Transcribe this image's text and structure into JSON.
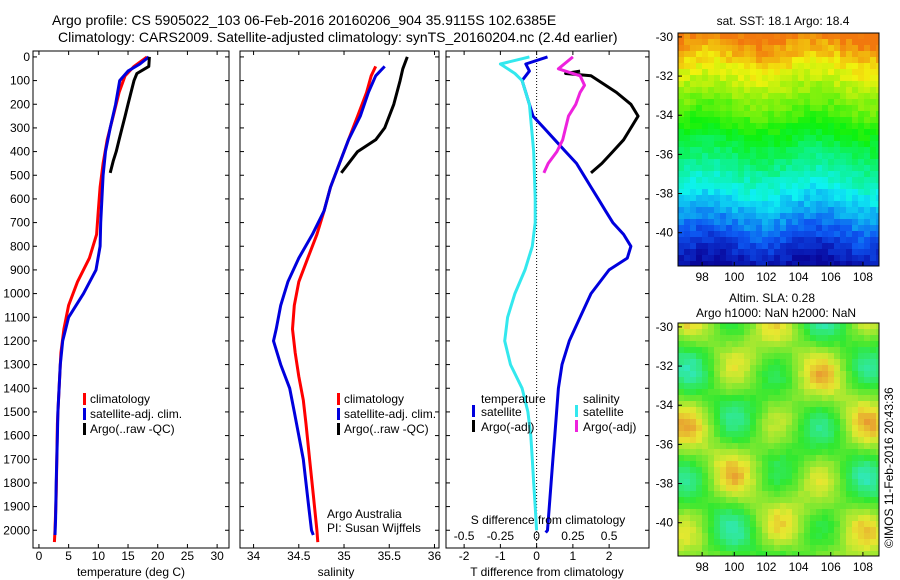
{
  "header": {
    "line1": "Argo profile: CS 5905022_103 06-Feb-2016 20160206_904 35.9115S 102.6385E",
    "line2": "Climatology: CARS2009. Satellite-adjusted climatology: synTS_20160204.nc (2.4d earlier)"
  },
  "colors": {
    "red": "#ff0000",
    "blue": "#0000dd",
    "black": "#000000",
    "cyan": "#33e8ee",
    "magenta": "#ee22dd"
  },
  "y_ticks": [
    "0",
    "100",
    "200",
    "300",
    "400",
    "500",
    "600",
    "700",
    "800",
    "900",
    "1000",
    "1100",
    "1200",
    "1300",
    "1400",
    "1500",
    "1600",
    "1700",
    "1800",
    "1900",
    "2000"
  ],
  "panels": {
    "temperature": {
      "xlabel": "temperature (deg C)",
      "xticks": [
        "0",
        "5",
        "10",
        "15",
        "20",
        "25",
        "30"
      ],
      "legend": [
        "climatology",
        "satellite-adj. clim.",
        "Argo(..raw -QC)"
      ]
    },
    "salinity": {
      "xlabel": "salinity",
      "xticks": [
        "34",
        "34.5",
        "35",
        "35.5",
        "36"
      ],
      "legend": [
        "climatology",
        "satellite-adj. clim.",
        "Argo(..raw -QC)"
      ],
      "credit1": "Argo Australia",
      "credit2": "PI: Susan Wijffels"
    },
    "difference": {
      "xlabel": "T difference from climatology",
      "xticks": [
        "-2",
        "-1",
        "0",
        "1",
        "2"
      ],
      "top_label": "S difference from climatology",
      "top_ticks": [
        "-0.5",
        "-0.25",
        "0",
        "0.25",
        "0.5"
      ],
      "legend_head_t": "temperature",
      "legend_head_s": "salinity",
      "legend_t": [
        "satellite",
        "Argo(-adj)"
      ],
      "legend_s": [
        "satellite",
        "Argo(-adj)"
      ]
    },
    "sst_map": {
      "title": "sat. SST: 18.1 Argo: 18.4",
      "xticks": [
        "98",
        "100",
        "102",
        "104",
        "106",
        "108"
      ],
      "yticks": [
        "-30",
        "-32",
        "-34",
        "-36",
        "-38",
        "-40"
      ]
    },
    "sla_map": {
      "title1": "Altim. SLA: 0.28",
      "title2": "Argo h1000: NaN h2000: NaN",
      "xticks": [
        "98",
        "100",
        "102",
        "104",
        "106",
        "108"
      ],
      "yticks": [
        "-30",
        "-32",
        "-34",
        "-36",
        "-38",
        "-40"
      ]
    }
  },
  "footer": {
    "stamp": "©IMOS 11-Feb-2016 20:43:36"
  },
  "chart_data": [
    {
      "type": "line",
      "panel": "temperature",
      "xlabel": "temperature (deg C)",
      "ylabel": "",
      "xlim": [
        -1,
        32
      ],
      "ylim": [
        2050,
        0
      ],
      "series": [
        {
          "name": "climatology",
          "color": "red",
          "points": [
            [
              18.2,
              0
            ],
            [
              16,
              40
            ],
            [
              14.5,
              80
            ],
            [
              13.5,
              150
            ],
            [
              12.5,
              250
            ],
            [
              11.5,
              350
            ],
            [
              10.8,
              450
            ],
            [
              10.3,
              550
            ],
            [
              10,
              650
            ],
            [
              9.7,
              750
            ],
            [
              8.5,
              850
            ],
            [
              6.5,
              950
            ],
            [
              5,
              1050
            ],
            [
              4.2,
              1150
            ],
            [
              3.7,
              1250
            ],
            [
              3.5,
              1350
            ],
            [
              3.3,
              1450
            ],
            [
              3.1,
              1550
            ],
            [
              3,
              1700
            ],
            [
              2.9,
              1850
            ],
            [
              2.7,
              2000
            ],
            [
              2.6,
              2050
            ]
          ]
        },
        {
          "name": "satellite-adj. clim.",
          "color": "blue",
          "points": [
            [
              18.5,
              0
            ],
            [
              17,
              30
            ],
            [
              15,
              60
            ],
            [
              13.6,
              100
            ],
            [
              12.9,
              200
            ],
            [
              12,
              300
            ],
            [
              11.2,
              400
            ],
            [
              10.8,
              500
            ],
            [
              10.6,
              600
            ],
            [
              10.4,
              700
            ],
            [
              10.3,
              800
            ],
            [
              9.6,
              900
            ],
            [
              7.5,
              1000
            ],
            [
              5,
              1100
            ],
            [
              4,
              1200
            ],
            [
              3.6,
              1300
            ],
            [
              3.4,
              1400
            ],
            [
              3.2,
              1500
            ],
            [
              3.1,
              1600
            ],
            [
              2.9,
              1800
            ],
            [
              2.8,
              1950
            ],
            [
              2.7,
              2020
            ]
          ]
        },
        {
          "name": "Argo(..raw -QC)",
          "color": "black",
          "points": [
            [
              18.6,
              0
            ],
            [
              18.5,
              40
            ],
            [
              16.5,
              70
            ],
            [
              16,
              100
            ],
            [
              15.5,
              150
            ],
            [
              15,
              200
            ],
            [
              14.5,
              250
            ],
            [
              14,
              300
            ],
            [
              13.5,
              350
            ],
            [
              13,
              400
            ],
            [
              12.5,
              440
            ],
            [
              12,
              490
            ]
          ]
        }
      ]
    },
    {
      "type": "line",
      "panel": "salinity",
      "xlabel": "salinity",
      "ylabel": "",
      "xlim": [
        33.85,
        36.05
      ],
      "ylim": [
        2050,
        0
      ],
      "series": [
        {
          "name": "climatology",
          "color": "red",
          "points": [
            [
              35.35,
              40
            ],
            [
              35.3,
              80
            ],
            [
              35.25,
              150
            ],
            [
              35.15,
              250
            ],
            [
              35.05,
              350
            ],
            [
              34.95,
              450
            ],
            [
              34.85,
              550
            ],
            [
              34.78,
              650
            ],
            [
              34.7,
              750
            ],
            [
              34.6,
              850
            ],
            [
              34.5,
              950
            ],
            [
              34.45,
              1050
            ],
            [
              34.43,
              1150
            ],
            [
              34.46,
              1250
            ],
            [
              34.5,
              1350
            ],
            [
              34.55,
              1450
            ],
            [
              34.58,
              1550
            ],
            [
              34.62,
              1700
            ],
            [
              34.66,
              1850
            ],
            [
              34.7,
              2000
            ],
            [
              34.71,
              2050
            ]
          ]
        },
        {
          "name": "satellite-adj. clim.",
          "color": "blue",
          "points": [
            [
              35.45,
              40
            ],
            [
              35.35,
              80
            ],
            [
              35.27,
              150
            ],
            [
              35.18,
              250
            ],
            [
              35.05,
              350
            ],
            [
              34.95,
              450
            ],
            [
              34.85,
              550
            ],
            [
              34.78,
              650
            ],
            [
              34.65,
              750
            ],
            [
              34.5,
              850
            ],
            [
              34.38,
              950
            ],
            [
              34.3,
              1050
            ],
            [
              34.25,
              1150
            ],
            [
              34.22,
              1200
            ],
            [
              34.3,
              1300
            ],
            [
              34.4,
              1400
            ],
            [
              34.45,
              1500
            ],
            [
              34.5,
              1600
            ],
            [
              34.55,
              1700
            ],
            [
              34.58,
              1800
            ],
            [
              34.61,
              1900
            ],
            [
              34.64,
              2000
            ],
            [
              34.66,
              2020
            ]
          ]
        },
        {
          "name": "Argo(..raw -QC)",
          "color": "black",
          "points": [
            [
              35.7,
              0
            ],
            [
              35.65,
              50
            ],
            [
              35.62,
              100
            ],
            [
              35.55,
              200
            ],
            [
              35.45,
              300
            ],
            [
              35.35,
              350
            ],
            [
              35.15,
              400
            ],
            [
              35.05,
              450
            ],
            [
              34.97,
              490
            ]
          ]
        }
      ]
    },
    {
      "type": "line",
      "panel": "difference",
      "xlabel": "T difference from climatology",
      "ylabel": "",
      "xlim": [
        -2.5,
        3.1
      ],
      "ylim": [
        2050,
        0
      ],
      "series": [
        {
          "name": "temperature satellite",
          "color": "blue",
          "points": [
            [
              0.3,
              0
            ],
            [
              -0.3,
              30
            ],
            [
              -0.2,
              60
            ],
            [
              -0.4,
              100
            ],
            [
              -0.3,
              150
            ],
            [
              -0.2,
              200
            ],
            [
              -0.1,
              250
            ],
            [
              0.2,
              300
            ],
            [
              0.5,
              350
            ],
            [
              0.8,
              400
            ],
            [
              1.1,
              450
            ],
            [
              1.3,
              500
            ],
            [
              1.5,
              550
            ],
            [
              1.7,
              600
            ],
            [
              1.9,
              650
            ],
            [
              2.1,
              700
            ],
            [
              2.4,
              750
            ],
            [
              2.6,
              800
            ],
            [
              2.5,
              850
            ],
            [
              2.0,
              900
            ],
            [
              1.5,
              1000
            ],
            [
              1.2,
              1100
            ],
            [
              0.9,
              1200
            ],
            [
              0.7,
              1300
            ],
            [
              0.6,
              1400
            ],
            [
              0.55,
              1500
            ],
            [
              0.5,
              1600
            ],
            [
              0.45,
              1700
            ],
            [
              0.4,
              1800
            ],
            [
              0.35,
              1900
            ],
            [
              0.3,
              2000
            ],
            [
              0.25,
              2010
            ]
          ]
        },
        {
          "name": "temperature Argo(-adj)",
          "color": "black",
          "points": [
            [
              1.2,
              60
            ],
            [
              0.8,
              70
            ],
            [
              1.5,
              80
            ],
            [
              1.8,
              110
            ],
            [
              2.2,
              150
            ],
            [
              2.6,
              200
            ],
            [
              2.8,
              250
            ],
            [
              2.6,
              300
            ],
            [
              2.4,
              350
            ],
            [
              2.1,
              400
            ],
            [
              1.8,
              450
            ],
            [
              1.5,
              490
            ]
          ]
        },
        {
          "name": "salinity satellite",
          "color": "cyan",
          "points": [
            [
              -0.05,
              0
            ],
            [
              -0.25,
              30
            ],
            [
              -0.15,
              70
            ],
            [
              -0.1,
              100
            ],
            [
              -0.05,
              200
            ],
            [
              -0.02,
              400
            ],
            [
              -0.01,
              600
            ],
            [
              -0.01,
              700
            ],
            [
              -0.03,
              800
            ],
            [
              -0.08,
              900
            ],
            [
              -0.15,
              1000
            ],
            [
              -0.2,
              1100
            ],
            [
              -0.22,
              1200
            ],
            [
              -0.18,
              1300
            ],
            [
              -0.1,
              1400
            ],
            [
              -0.06,
              1500
            ],
            [
              -0.04,
              1600
            ],
            [
              -0.03,
              1700
            ],
            [
              -0.02,
              1800
            ],
            [
              -0.01,
              1900
            ],
            [
              0.0,
              2000
            ]
          ]
        },
        {
          "name": "salinity Argo(-adj)",
          "color": "magenta",
          "points": [
            [
              0.25,
              0
            ],
            [
              0.15,
              50
            ],
            [
              0.3,
              80
            ],
            [
              0.33,
              120
            ],
            [
              0.3,
              150
            ],
            [
              0.27,
              200
            ],
            [
              0.22,
              250
            ],
            [
              0.2,
              300
            ],
            [
              0.18,
              350
            ],
            [
              0.14,
              400
            ],
            [
              0.08,
              450
            ],
            [
              0.05,
              490
            ]
          ]
        }
      ]
    },
    {
      "type": "heatmap",
      "panel": "sst_map",
      "title": "sat. SST: 18.1 Argo: 18.4",
      "xlim": [
        96.5,
        109
      ],
      "ylim": [
        -41.7,
        -29.8
      ],
      "description_values": "SST field warm (orange) in north grading to cool (dark blue) in south"
    },
    {
      "type": "heatmap",
      "panel": "sla_map",
      "title": "Altim. SLA: 0.28",
      "xlim": [
        96.5,
        109
      ],
      "ylim": [
        -41.7,
        -29.8
      ]
    }
  ]
}
